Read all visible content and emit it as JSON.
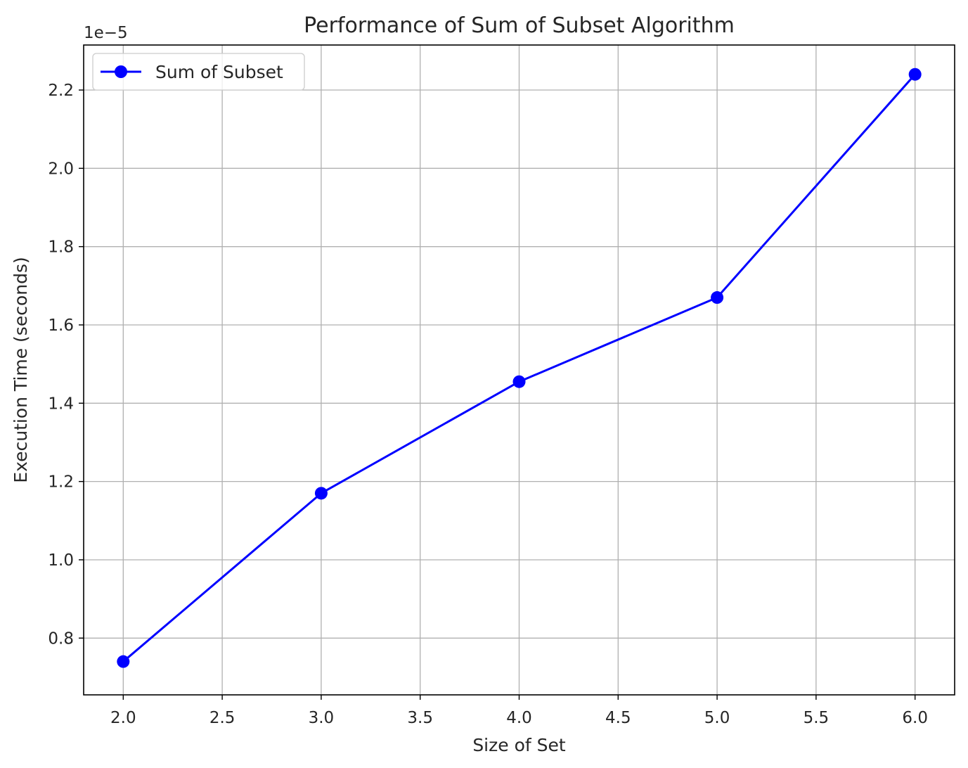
{
  "chart_data": {
    "type": "line",
    "title": "Performance of Sum of Subset Algorithm",
    "xlabel": "Size of Set",
    "ylabel": "Execution Time (seconds)",
    "y_offset_label": "1e−5",
    "xlim": [
      1.8,
      6.2
    ],
    "ylim": [
      0.655,
      2.315
    ],
    "x_ticks": [
      2.0,
      2.5,
      3.0,
      3.5,
      4.0,
      4.5,
      5.0,
      5.5,
      6.0
    ],
    "x_tick_labels": [
      "2.0",
      "2.5",
      "3.0",
      "3.5",
      "4.0",
      "4.5",
      "5.0",
      "5.5",
      "6.0"
    ],
    "y_ticks": [
      0.8,
      1.0,
      1.2,
      1.4,
      1.6,
      1.8,
      2.0,
      2.2
    ],
    "y_tick_labels": [
      "0.8",
      "1.0",
      "1.2",
      "1.4",
      "1.6",
      "1.8",
      "2.0",
      "2.2"
    ],
    "grid": true,
    "legend_position": "upper-left",
    "series": [
      {
        "name": "Sum of Subset",
        "color": "#0000ff",
        "marker": "circle",
        "x": [
          2,
          3,
          4,
          5,
          6
        ],
        "y": [
          0.74,
          1.17,
          1.455,
          1.67,
          2.24
        ]
      }
    ]
  }
}
